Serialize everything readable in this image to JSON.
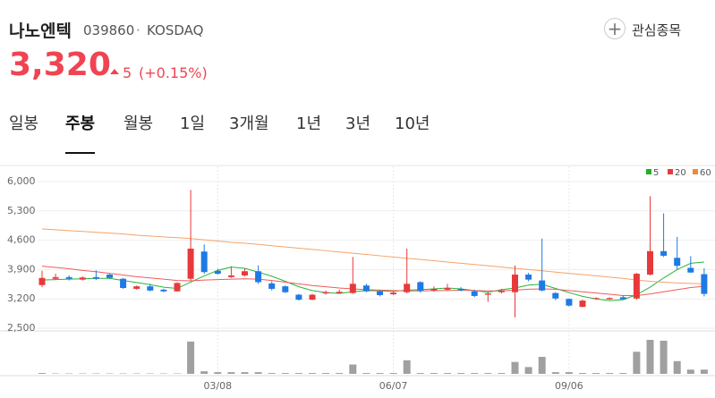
{
  "header": {
    "name": "나노엔텍",
    "code": "039860",
    "separator": "·",
    "market": "KOSDAQ",
    "price": "3,320",
    "change": "5",
    "change_pct": "(+0.15%)",
    "watch_button": "관심종목"
  },
  "tabs": [
    "일봉",
    "주봉",
    "월봉",
    "1일",
    "3개월",
    "1년",
    "3년",
    "10년"
  ],
  "selected_tab": 1,
  "chart_data": {
    "type": "candlestick",
    "categories": [
      null,
      null,
      null,
      null,
      null,
      null,
      null,
      null,
      null,
      null,
      null,
      null,
      null,
      "03/08",
      null,
      null,
      null,
      null,
      null,
      null,
      null,
      null,
      null,
      null,
      null,
      null,
      "06/07",
      null,
      null,
      null,
      null,
      null,
      null,
      null,
      null,
      null,
      null,
      null,
      null,
      "09/06",
      null,
      null,
      null,
      null,
      null,
      null,
      null,
      null,
      null,
      null
    ],
    "open": [
      3530,
      3680,
      3720,
      3660,
      3720,
      3780,
      3680,
      3440,
      3500,
      3420,
      3380,
      3680,
      4330,
      3870,
      3720,
      3760,
      3860,
      3570,
      3500,
      3300,
      3180,
      3330,
      3340,
      3340,
      3520,
      3380,
      3310,
      3360,
      3600,
      3400,
      3420,
      3440,
      3380,
      3300,
      3360,
      3360,
      3780,
      3640,
      3340,
      3200,
      3010,
      3200,
      3190,
      3240,
      3210,
      3780,
      4340,
      4180,
      3940,
      3790
    ],
    "high": [
      3870,
      3800,
      3760,
      3740,
      3880,
      3800,
      3700,
      3520,
      3560,
      3440,
      3600,
      5800,
      4500,
      3920,
      3980,
      3920,
      4000,
      3620,
      3520,
      3320,
      3320,
      3400,
      3420,
      4200,
      3560,
      3420,
      3380,
      4400,
      3620,
      3500,
      3560,
      3480,
      3420,
      3360,
      3440,
      4000,
      3820,
      4640,
      3360,
      3210,
      3180,
      3240,
      3240,
      3280,
      3820,
      5650,
      5240,
      4680,
      4220,
      3930
    ],
    "low": [
      3480,
      3650,
      3640,
      3640,
      3650,
      3680,
      3440,
      3420,
      3380,
      3360,
      3370,
      3640,
      3800,
      3780,
      3700,
      3740,
      3560,
      3400,
      3340,
      3160,
      3170,
      3300,
      3320,
      3320,
      3360,
      3260,
      3290,
      3330,
      3350,
      3370,
      3400,
      3380,
      3240,
      3130,
      3330,
      2760,
      3620,
      3380,
      3170,
      3020,
      3000,
      3180,
      3180,
      3180,
      3180,
      3760,
      4200,
      3900,
      3820,
      3260
    ],
    "close": [
      3700,
      3720,
      3680,
      3710,
      3680,
      3700,
      3460,
      3500,
      3400,
      3380,
      3580,
      4400,
      3840,
      3800,
      3760,
      3860,
      3600,
      3440,
      3360,
      3180,
      3300,
      3360,
      3370,
      3560,
      3380,
      3290,
      3350,
      3560,
      3390,
      3440,
      3460,
      3400,
      3270,
      3330,
      3400,
      3780,
      3660,
      3400,
      3210,
      3040,
      3160,
      3220,
      3220,
      3190,
      3800,
      4340,
      4230,
      3990,
      3830,
      3320
    ],
    "up_color": "#e8393a",
    "down_color": "#1e7ae4",
    "lines": [
      {
        "name": "5",
        "color": "#2cb43c",
        "values": [
          3650,
          3660,
          3670,
          3680,
          3690,
          3690,
          3640,
          3590,
          3540,
          3480,
          3450,
          3600,
          3750,
          3880,
          3960,
          3930,
          3840,
          3740,
          3620,
          3490,
          3400,
          3350,
          3330,
          3370,
          3400,
          3390,
          3380,
          3410,
          3420,
          3440,
          3460,
          3440,
          3400,
          3360,
          3420,
          3460,
          3530,
          3550,
          3450,
          3350,
          3260,
          3200,
          3160,
          3180,
          3300,
          3480,
          3700,
          3900,
          4050,
          4080
        ]
      },
      {
        "name": "20",
        "color": "#f05a5a",
        "values": [
          3980,
          3950,
          3920,
          3880,
          3850,
          3810,
          3770,
          3730,
          3700,
          3670,
          3640,
          3630,
          3650,
          3660,
          3670,
          3680,
          3670,
          3640,
          3600,
          3560,
          3520,
          3490,
          3460,
          3440,
          3420,
          3410,
          3400,
          3390,
          3390,
          3400,
          3400,
          3410,
          3400,
          3390,
          3390,
          3410,
          3430,
          3440,
          3430,
          3400,
          3370,
          3340,
          3310,
          3280,
          3280,
          3320,
          3370,
          3420,
          3470,
          3500
        ]
      },
      {
        "name": "60",
        "color": "#f5a36a",
        "values": [
          4870,
          4850,
          4830,
          4810,
          4790,
          4770,
          4750,
          4720,
          4700,
          4680,
          4660,
          4640,
          4610,
          4580,
          4550,
          4530,
          4500,
          4470,
          4440,
          4410,
          4380,
          4350,
          4320,
          4290,
          4260,
          4230,
          4200,
          4170,
          4140,
          4110,
          4080,
          4050,
          4020,
          3990,
          3960,
          3930,
          3900,
          3870,
          3840,
          3810,
          3780,
          3750,
          3720,
          3690,
          3650,
          3620,
          3600,
          3580,
          3570,
          3560
        ]
      }
    ],
    "legend_colors": [
      "#22b022",
      "#e8393a",
      "#f0883a"
    ],
    "volume": [
      1,
      0.5,
      0.5,
      0.5,
      0.5,
      0.5,
      0.5,
      0.5,
      0.5,
      0.5,
      0.5,
      38,
      3,
      2,
      2,
      2,
      2,
      1,
      1,
      1,
      1,
      1,
      1,
      11,
      1,
      1,
      1,
      16,
      1,
      1,
      1,
      1,
      1,
      1,
      1,
      14,
      8,
      20,
      2,
      2,
      1,
      1,
      1,
      1,
      26,
      40,
      39,
      15,
      5,
      5
    ],
    "volume_ylim": [
      0,
      40
    ],
    "volume_color": "#a0a0a0",
    "ylim": [
      2500,
      6000
    ],
    "yticks": [
      {
        "value": 2500,
        "label": "2,500"
      },
      {
        "value": 3200,
        "label": "3,200"
      },
      {
        "value": 3900,
        "label": "3,900"
      },
      {
        "value": 4600,
        "label": "4,600"
      },
      {
        "value": 5300,
        "label": "5,300"
      },
      {
        "value": 6000,
        "label": "6,000"
      }
    ],
    "grid": true
  }
}
